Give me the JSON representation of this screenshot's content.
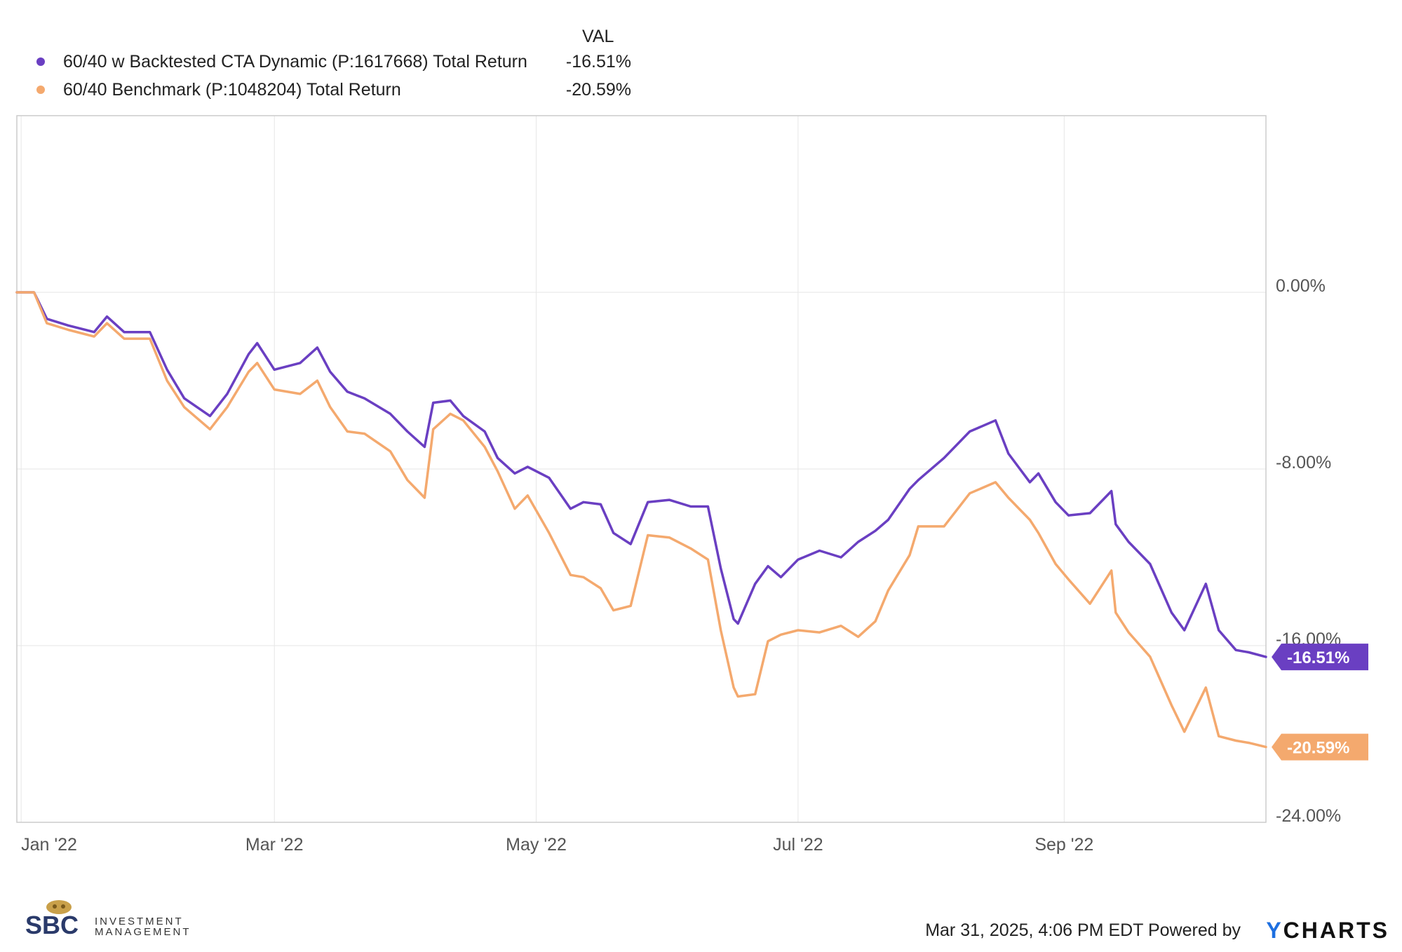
{
  "legend": {
    "header": "VAL",
    "items": [
      {
        "name": "60/40 w Backtested CTA Dynamic (P:1617668) Total Return",
        "value": "-16.51%"
      },
      {
        "name": "60/40 Benchmark (P:1048204) Total Return",
        "value": "-20.59%"
      }
    ]
  },
  "footer": {
    "timestamp": "Mar 31, 2025, 4:06 PM EDT",
    "powered_by": "Powered by",
    "brand_y": "Y",
    "brand_rest": "CHARTS"
  },
  "logo": {
    "initials": "SBC",
    "word1": "INVESTMENT",
    "word2": "MANAGEMENT"
  },
  "colors": {
    "series1": "#6a3fc2",
    "series2": "#f4a96e",
    "grid": "#e6e6e6",
    "axis": "#cccccc"
  },
  "chart_data": {
    "type": "line",
    "title": "",
    "xlabel": "",
    "ylabel": "",
    "ylim": [
      -24,
      8
    ],
    "xlim": [
      "2021-12-31",
      "2022-10-18"
    ],
    "xticks": [
      {
        "date": "2022-01-01",
        "label": "Jan '22"
      },
      {
        "date": "2022-03-01",
        "label": "Mar '22"
      },
      {
        "date": "2022-05-01",
        "label": "May '22"
      },
      {
        "date": "2022-07-01",
        "label": "Jul '22"
      },
      {
        "date": "2022-09-01",
        "label": "Sep '22"
      }
    ],
    "yticks": [
      {
        "value": 0,
        "label": "0.00%"
      },
      {
        "value": -8,
        "label": "-8.00%"
      },
      {
        "value": -16,
        "label": "-16.00%"
      },
      {
        "value": -24,
        "label": "-24.00%"
      }
    ],
    "grid": true,
    "legend": "top-left",
    "series": [
      {
        "name": "60/40 w Backtested CTA Dynamic (P:1617668) Total Return",
        "end_label": "-16.51%",
        "points": [
          [
            "2021-12-31",
            0.0
          ],
          [
            "2022-01-04",
            0.0
          ],
          [
            "2022-01-07",
            -1.2
          ],
          [
            "2022-01-12",
            -1.5
          ],
          [
            "2022-01-18",
            -1.8
          ],
          [
            "2022-01-21",
            -1.1
          ],
          [
            "2022-01-25",
            -1.8
          ],
          [
            "2022-01-31",
            -1.8
          ],
          [
            "2022-02-04",
            -3.5
          ],
          [
            "2022-02-08",
            -4.8
          ],
          [
            "2022-02-14",
            -5.6
          ],
          [
            "2022-02-18",
            -4.6
          ],
          [
            "2022-02-23",
            -2.8
          ],
          [
            "2022-02-25",
            -2.3
          ],
          [
            "2022-03-01",
            -3.5
          ],
          [
            "2022-03-07",
            -3.2
          ],
          [
            "2022-03-11",
            -2.5
          ],
          [
            "2022-03-14",
            -3.6
          ],
          [
            "2022-03-18",
            -4.5
          ],
          [
            "2022-03-22",
            -4.8
          ],
          [
            "2022-03-28",
            -5.5
          ],
          [
            "2022-04-01",
            -6.3
          ],
          [
            "2022-04-05",
            -7.0
          ],
          [
            "2022-04-07",
            -5.0
          ],
          [
            "2022-04-11",
            -4.9
          ],
          [
            "2022-04-14",
            -5.6
          ],
          [
            "2022-04-19",
            -6.3
          ],
          [
            "2022-04-22",
            -7.5
          ],
          [
            "2022-04-26",
            -8.2
          ],
          [
            "2022-04-29",
            -7.9
          ],
          [
            "2022-05-04",
            -8.4
          ],
          [
            "2022-05-09",
            -9.8
          ],
          [
            "2022-05-12",
            -9.5
          ],
          [
            "2022-05-16",
            -9.6
          ],
          [
            "2022-05-19",
            -10.9
          ],
          [
            "2022-05-23",
            -11.4
          ],
          [
            "2022-05-27",
            -9.5
          ],
          [
            "2022-06-01",
            -9.4
          ],
          [
            "2022-06-06",
            -9.7
          ],
          [
            "2022-06-10",
            -9.7
          ],
          [
            "2022-06-13",
            -12.5
          ],
          [
            "2022-06-16",
            -14.8
          ],
          [
            "2022-06-17",
            -15.0
          ],
          [
            "2022-06-21",
            -13.2
          ],
          [
            "2022-06-24",
            -12.4
          ],
          [
            "2022-06-27",
            -12.9
          ],
          [
            "2022-07-01",
            -12.1
          ],
          [
            "2022-07-06",
            -11.7
          ],
          [
            "2022-07-11",
            -12.0
          ],
          [
            "2022-07-15",
            -11.3
          ],
          [
            "2022-07-19",
            -10.8
          ],
          [
            "2022-07-22",
            -10.3
          ],
          [
            "2022-07-27",
            -8.9
          ],
          [
            "2022-07-29",
            -8.5
          ],
          [
            "2022-08-04",
            -7.5
          ],
          [
            "2022-08-10",
            -6.3
          ],
          [
            "2022-08-16",
            -5.8
          ],
          [
            "2022-08-19",
            -7.3
          ],
          [
            "2022-08-24",
            -8.6
          ],
          [
            "2022-08-26",
            -8.2
          ],
          [
            "2022-08-30",
            -9.5
          ],
          [
            "2022-09-02",
            -10.1
          ],
          [
            "2022-09-07",
            -10.0
          ],
          [
            "2022-09-12",
            -9.0
          ],
          [
            "2022-09-13",
            -10.5
          ],
          [
            "2022-09-16",
            -11.3
          ],
          [
            "2022-09-21",
            -12.3
          ],
          [
            "2022-09-26",
            -14.5
          ],
          [
            "2022-09-29",
            -15.3
          ],
          [
            "2022-10-04",
            -13.2
          ],
          [
            "2022-10-07",
            -15.3
          ],
          [
            "2022-10-11",
            -16.2
          ],
          [
            "2022-10-14",
            -16.3
          ],
          [
            "2022-10-18",
            -16.51
          ]
        ]
      },
      {
        "name": "60/40 Benchmark (P:1048204) Total Return",
        "end_label": "-20.59%",
        "points": [
          [
            "2021-12-31",
            0.0
          ],
          [
            "2022-01-04",
            0.0
          ],
          [
            "2022-01-07",
            -1.4
          ],
          [
            "2022-01-12",
            -1.7
          ],
          [
            "2022-01-18",
            -2.0
          ],
          [
            "2022-01-21",
            -1.4
          ],
          [
            "2022-01-25",
            -2.1
          ],
          [
            "2022-01-31",
            -2.1
          ],
          [
            "2022-02-04",
            -4.0
          ],
          [
            "2022-02-08",
            -5.2
          ],
          [
            "2022-02-14",
            -6.2
          ],
          [
            "2022-02-18",
            -5.2
          ],
          [
            "2022-02-23",
            -3.6
          ],
          [
            "2022-02-25",
            -3.2
          ],
          [
            "2022-03-01",
            -4.4
          ],
          [
            "2022-03-07",
            -4.6
          ],
          [
            "2022-03-11",
            -4.0
          ],
          [
            "2022-03-14",
            -5.2
          ],
          [
            "2022-03-18",
            -6.3
          ],
          [
            "2022-03-22",
            -6.4
          ],
          [
            "2022-03-28",
            -7.2
          ],
          [
            "2022-04-01",
            -8.5
          ],
          [
            "2022-04-05",
            -9.3
          ],
          [
            "2022-04-07",
            -6.2
          ],
          [
            "2022-04-11",
            -5.5
          ],
          [
            "2022-04-14",
            -5.8
          ],
          [
            "2022-04-19",
            -7.0
          ],
          [
            "2022-04-22",
            -8.1
          ],
          [
            "2022-04-26",
            -9.8
          ],
          [
            "2022-04-29",
            -9.2
          ],
          [
            "2022-05-04",
            -10.9
          ],
          [
            "2022-05-09",
            -12.8
          ],
          [
            "2022-05-12",
            -12.9
          ],
          [
            "2022-05-16",
            -13.4
          ],
          [
            "2022-05-19",
            -14.4
          ],
          [
            "2022-05-23",
            -14.2
          ],
          [
            "2022-05-27",
            -11.0
          ],
          [
            "2022-06-01",
            -11.1
          ],
          [
            "2022-06-06",
            -11.6
          ],
          [
            "2022-06-10",
            -12.1
          ],
          [
            "2022-06-13",
            -15.3
          ],
          [
            "2022-06-16",
            -17.9
          ],
          [
            "2022-06-17",
            -18.3
          ],
          [
            "2022-06-21",
            -18.2
          ],
          [
            "2022-06-24",
            -15.8
          ],
          [
            "2022-06-27",
            -15.5
          ],
          [
            "2022-07-01",
            -15.3
          ],
          [
            "2022-07-06",
            -15.4
          ],
          [
            "2022-07-11",
            -15.1
          ],
          [
            "2022-07-15",
            -15.6
          ],
          [
            "2022-07-19",
            -14.9
          ],
          [
            "2022-07-22",
            -13.5
          ],
          [
            "2022-07-27",
            -11.9
          ],
          [
            "2022-07-29",
            -10.6
          ],
          [
            "2022-08-04",
            -10.6
          ],
          [
            "2022-08-10",
            -9.1
          ],
          [
            "2022-08-16",
            -8.6
          ],
          [
            "2022-08-19",
            -9.3
          ],
          [
            "2022-08-24",
            -10.3
          ],
          [
            "2022-08-26",
            -10.9
          ],
          [
            "2022-08-30",
            -12.3
          ],
          [
            "2022-09-02",
            -13.0
          ],
          [
            "2022-09-07",
            -14.1
          ],
          [
            "2022-09-12",
            -12.6
          ],
          [
            "2022-09-13",
            -14.5
          ],
          [
            "2022-09-16",
            -15.4
          ],
          [
            "2022-09-21",
            -16.5
          ],
          [
            "2022-09-26",
            -18.7
          ],
          [
            "2022-09-29",
            -19.9
          ],
          [
            "2022-10-04",
            -17.9
          ],
          [
            "2022-10-07",
            -20.1
          ],
          [
            "2022-10-11",
            -20.3
          ],
          [
            "2022-10-14",
            -20.4
          ],
          [
            "2022-10-18",
            -20.59
          ]
        ]
      }
    ]
  }
}
